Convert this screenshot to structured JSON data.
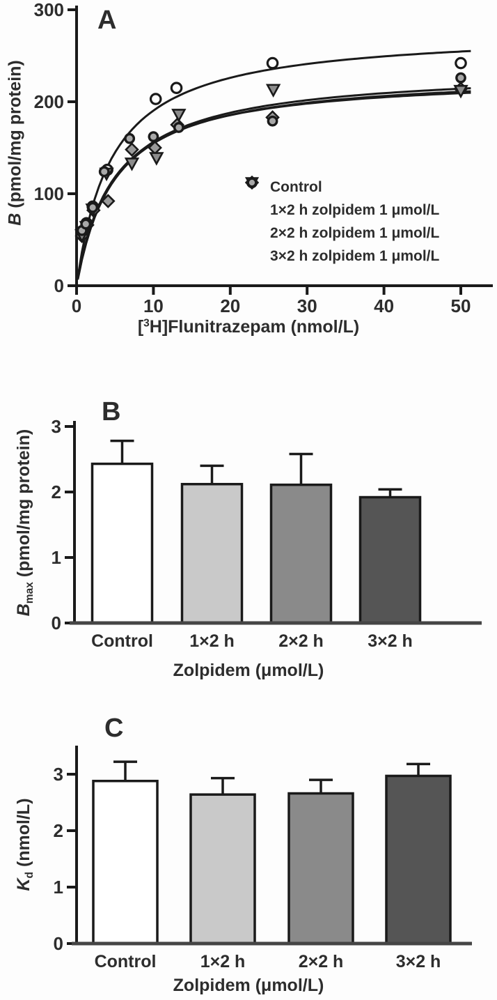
{
  "panels": {
    "A": {
      "letter": "A",
      "ylabel": {
        "var": "B",
        "rest": " (pmol/mg protein)"
      },
      "xlabel": {
        "pre": "[",
        "sup": "3",
        "post": "H]Flunitrazepam (nmol/L)"
      }
    },
    "B": {
      "letter": "B",
      "ylabel": {
        "var": "B",
        "sub": "max",
        "rest": " (pmol/mg protein)"
      },
      "xlabel": "Zolpidem (μmol/L)"
    },
    "C": {
      "letter": "C",
      "ylabel": {
        "var": "K",
        "sub": "d",
        "rest": " (nmol/L)"
      },
      "xlabel": "Zolpidem (μmol/L)"
    }
  },
  "colors": {
    "axis": "#1a1a1a",
    "baseline": "#454545",
    "text": "#2d2d2d",
    "open_fill": "#ffffff",
    "gray_fill_light": "#c9c9c9",
    "gray_fill_mid": "#8a8a8a",
    "gray_fill_dark": "#555555",
    "marker_gray": "#9a9a9a"
  },
  "chart_data": [
    {
      "type": "scatter",
      "panel": "A",
      "title": "",
      "xlabel": "[3H]Flunitrazepam (nmol/L)",
      "ylabel": "B (pmol/mg protein)",
      "xlim": [
        0,
        54
      ],
      "ylim": [
        0,
        300
      ],
      "xticks": [
        0,
        10,
        20,
        30,
        40,
        50
      ],
      "yticks": [
        0,
        100,
        200,
        300
      ],
      "grid": false,
      "legend_position": "inside-right",
      "series": [
        {
          "name": "Control",
          "marker": "open-circle",
          "marker_fill": "#ffffff",
          "x": [
            0.7,
            1.3,
            2.1,
            4.0,
            10.3,
            13.0,
            25.5,
            50
          ],
          "y": [
            58,
            68,
            86,
            126,
            203,
            215,
            242,
            242
          ],
          "fit": {
            "bmax": 278,
            "kd": 4.6
          }
        },
        {
          "name": "1×2 h zolpidem 1 μmol/L",
          "marker": "diamond",
          "marker_fill": "#9a9a9a",
          "x": [
            0.7,
            1.4,
            2.2,
            4.1,
            7.2,
            10.2,
            13.1,
            25.5,
            50
          ],
          "y": [
            54,
            66,
            82,
            92,
            148,
            150,
            175,
            183,
            214
          ],
          "fit": {
            "bmax": 232,
            "kd": 5.0
          }
        },
        {
          "name": "2×2 h zolpidem 1 μmol/L",
          "marker": "triangle-down",
          "marker_fill": "#8c8c8c",
          "x": [
            0.7,
            1.3,
            2.1,
            3.9,
            7.2,
            10.4,
            13.3,
            25.6,
            50
          ],
          "y": [
            55,
            64,
            83,
            122,
            133,
            139,
            186,
            213,
            212
          ],
          "fit": {
            "bmax": 236,
            "kd": 5.1
          }
        },
        {
          "name": "3×2 h zolpidem 1 μmol/L",
          "marker": "gray-circle",
          "marker_fill": "#a8a8a8",
          "x": [
            0.7,
            1.2,
            2.1,
            3.6,
            6.9,
            10.0,
            13.3,
            25.5,
            50
          ],
          "y": [
            60,
            67,
            85,
            124,
            160,
            162,
            172,
            179,
            226
          ],
          "fit": {
            "bmax": 229,
            "kd": 4.7
          }
        }
      ]
    },
    {
      "type": "bar",
      "panel": "B",
      "title": "",
      "xlabel": "Zolpidem (μmol/L)",
      "ylabel": "Bmax (pmol/mg protein)",
      "categories": [
        "Control",
        "1×2 h",
        "2×2 h",
        "3×2 h"
      ],
      "values": [
        2.43,
        2.12,
        2.11,
        1.92
      ],
      "errors": [
        0.35,
        0.28,
        0.47,
        0.12
      ],
      "bar_colors": [
        "#ffffff",
        "#c9c9c9",
        "#8a8a8a",
        "#555555"
      ],
      "yticks": [
        0,
        1,
        2,
        3
      ],
      "ylim": [
        0,
        3.1
      ],
      "grid": false
    },
    {
      "type": "bar",
      "panel": "C",
      "title": "",
      "xlabel": "Zolpidem (μmol/L)",
      "ylabel": "Kd (nmol/L)",
      "categories": [
        "Control",
        "1×2 h",
        "2×2 h",
        "3×2 h"
      ],
      "values": [
        2.88,
        2.64,
        2.66,
        2.97
      ],
      "errors": [
        0.34,
        0.29,
        0.24,
        0.21
      ],
      "bar_colors": [
        "#ffffff",
        "#c9c9c9",
        "#8a8a8a",
        "#555555"
      ],
      "yticks": [
        0,
        1,
        2,
        3
      ],
      "ylim": [
        0,
        3.5
      ],
      "grid": false
    }
  ]
}
